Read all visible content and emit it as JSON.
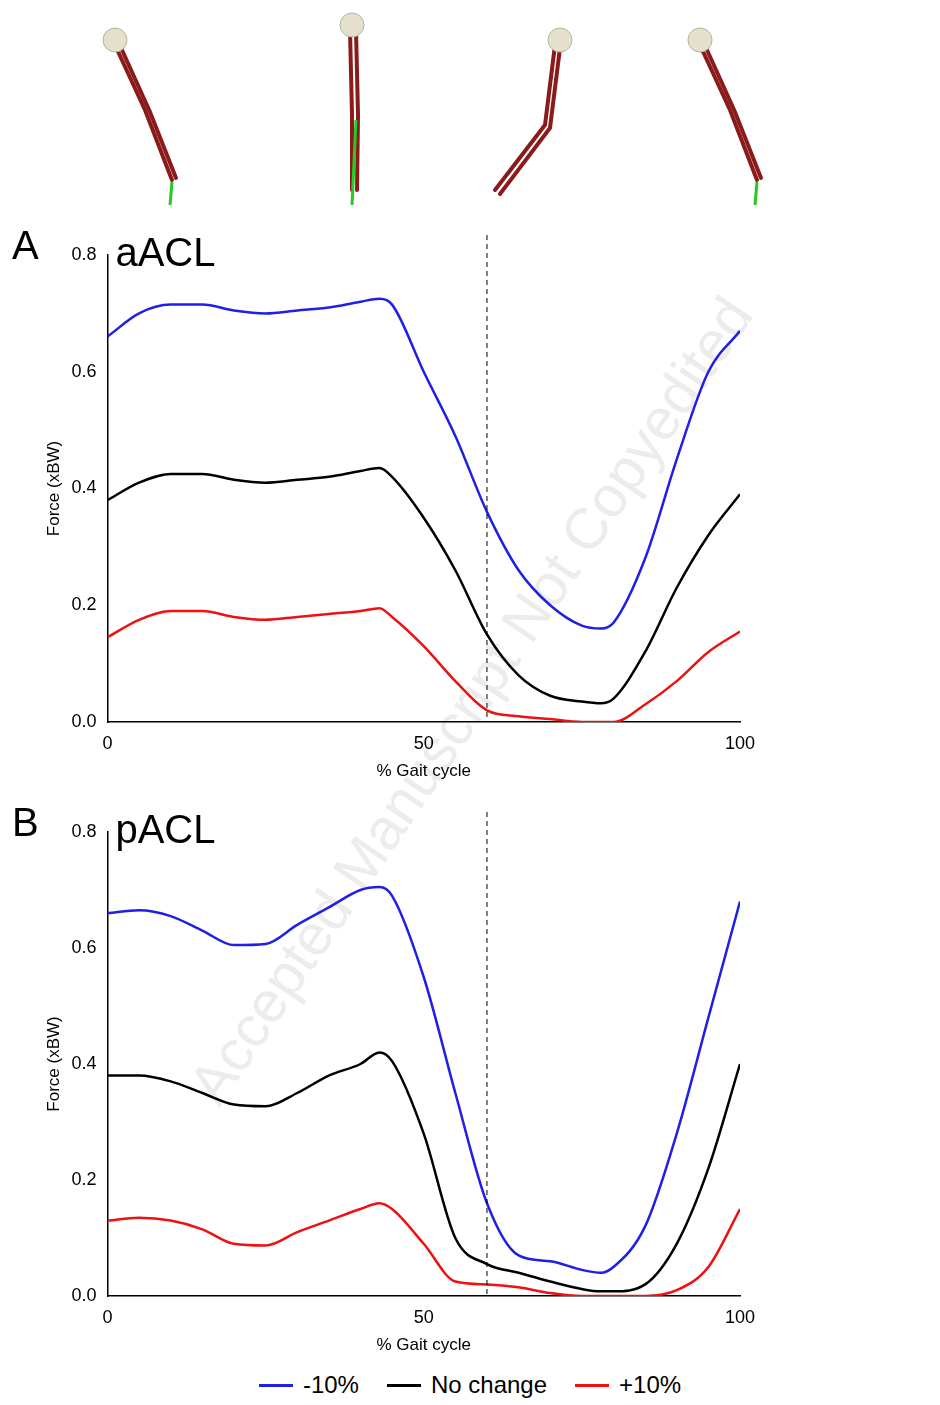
{
  "watermark": "Accepted Manuscript Not Copyedited",
  "chart_data": [
    {
      "type": "line",
      "panel_label": "A",
      "title": "aACL",
      "x_label": "% Gait cycle",
      "y_label": "Force (xBW)",
      "x": [
        0,
        5,
        10,
        15,
        20,
        25,
        30,
        35,
        40,
        43,
        45,
        50,
        55,
        60,
        65,
        70,
        75,
        78,
        80,
        85,
        90,
        95,
        100
      ],
      "series": [
        {
          "name": "-10%",
          "color": "#1f1fe6",
          "values": [
            0.66,
            0.7,
            0.715,
            0.715,
            0.705,
            0.7,
            0.705,
            0.71,
            0.72,
            0.725,
            0.715,
            0.6,
            0.49,
            0.36,
            0.26,
            0.2,
            0.165,
            0.16,
            0.17,
            0.28,
            0.45,
            0.6,
            0.67
          ]
        },
        {
          "name": "No change",
          "color": "#000000",
          "values": [
            0.38,
            0.41,
            0.425,
            0.425,
            0.415,
            0.41,
            0.415,
            0.42,
            0.43,
            0.435,
            0.42,
            0.35,
            0.26,
            0.15,
            0.08,
            0.045,
            0.035,
            0.032,
            0.04,
            0.12,
            0.23,
            0.32,
            0.39
          ]
        },
        {
          "name": "+10%",
          "color": "#ee1111",
          "values": [
            0.145,
            0.175,
            0.19,
            0.19,
            0.18,
            0.175,
            0.18,
            0.185,
            0.19,
            0.195,
            0.18,
            0.13,
            0.07,
            0.02,
            0.01,
            0.005,
            0,
            0,
            0,
            0.03,
            0.07,
            0.12,
            0.155
          ]
        }
      ],
      "xlim": [
        0,
        100
      ],
      "xticks": [
        0,
        50,
        100
      ],
      "ylim": [
        0,
        0.8
      ],
      "yticks": [
        {
          "value": 0,
          "label": "0.0"
        },
        0.2,
        0.4,
        0.6,
        0.8
      ],
      "vline_x": 60,
      "line_style": "solid",
      "grid": false
    },
    {
      "type": "line",
      "panel_label": "B",
      "title": "pACL",
      "x_label": "% Gait cycle",
      "y_label": "Force (xBW)",
      "x": [
        0,
        5,
        10,
        15,
        20,
        25,
        30,
        35,
        40,
        43,
        45,
        50,
        55,
        60,
        65,
        70,
        75,
        78,
        80,
        85,
        90,
        95,
        100
      ],
      "series": [
        {
          "name": "-10%",
          "color": "#1f1fe6",
          "values": [
            0.66,
            0.665,
            0.655,
            0.63,
            0.605,
            0.607,
            0.64,
            0.67,
            0.7,
            0.705,
            0.69,
            0.55,
            0.35,
            0.16,
            0.07,
            0.06,
            0.045,
            0.04,
            0.05,
            0.12,
            0.28,
            0.48,
            0.68
          ]
        },
        {
          "name": "No change",
          "color": "#000000",
          "values": [
            0.38,
            0.38,
            0.37,
            0.35,
            0.33,
            0.327,
            0.35,
            0.38,
            0.4,
            0.42,
            0.405,
            0.28,
            0.1,
            0.055,
            0.04,
            0.025,
            0.012,
            0.008,
            0.008,
            0.02,
            0.09,
            0.22,
            0.4
          ]
        },
        {
          "name": "+10%",
          "color": "#ee1111",
          "values": [
            0.13,
            0.135,
            0.13,
            0.115,
            0.09,
            0.087,
            0.11,
            0.13,
            0.15,
            0.16,
            0.15,
            0.09,
            0.025,
            0.02,
            0.015,
            0.005,
            0,
            0,
            0,
            0,
            0.01,
            0.05,
            0.15
          ]
        }
      ],
      "xlim": [
        0,
        100
      ],
      "xticks": [
        0,
        50,
        100
      ],
      "ylim": [
        0,
        0.8
      ],
      "yticks": [
        {
          "value": 0,
          "label": "0.0"
        },
        0.2,
        0.4,
        0.6,
        0.8
      ],
      "vline_x": 60,
      "line_style": "solid",
      "grid": false,
      "legend": "bottom"
    }
  ]
}
